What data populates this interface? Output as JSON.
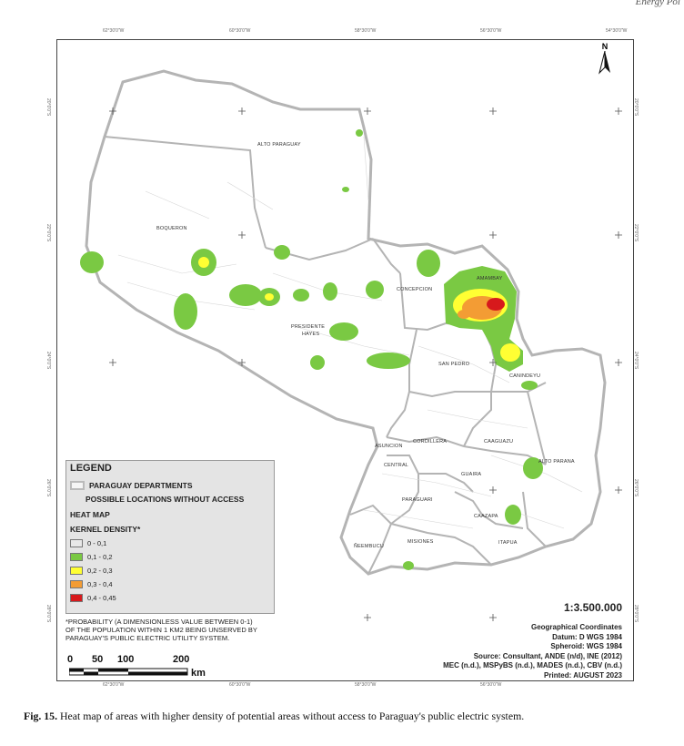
{
  "journal_header": "Energy Pol",
  "ticks": {
    "top": [
      "62°30'0\"W",
      "60°30'0\"W",
      "58°30'0\"W",
      "56°30'0\"W",
      "54°30'0\"W"
    ],
    "bottom": [
      "62°30'0\"W",
      "60°30'0\"W",
      "58°30'0\"W",
      "56°30'0\"W"
    ],
    "left": [
      "20°0'0\"S",
      "22°0'0\"S",
      "24°0'0\"S",
      "26°0'0\"S",
      "28°0'0\"S"
    ],
    "right": [
      "20°0'0\"S",
      "22°0'0\"S",
      "24°0'0\"S",
      "26°0'0\"S",
      "28°0'0\"S"
    ]
  },
  "north_label": "N",
  "departments": {
    "alto_paraguay": "ALTO PARAGUAY",
    "boqueron": "BOQUERON",
    "presidente_hayes_1": "PRESIDENTE",
    "presidente_hayes_2": "HAYES",
    "concepcion": "CONCEPCION",
    "amambay": "AMAMBAY",
    "san_pedro": "SAN PEDRO",
    "canindeyu": "CANINDEYU",
    "asuncion": "ASUNCION",
    "cordillera": "CORDILLERA",
    "caaguazu": "CAAGUAZU",
    "central": "CENTRAL",
    "alto_parana": "ALTO PARANA",
    "guaira": "GUAIRA",
    "paraguari": "PARAGUARI",
    "caazapa": "CAAZAPA",
    "neembucu": "ÑEEMBUCU",
    "misiones": "MISIONES",
    "itapua": "ITAPUA"
  },
  "legend": {
    "title": "LEGEND",
    "departments_label": "PARAGUAY DEPARTMENTS",
    "locations_label": "POSSIBLE LOCATIONS WITHOUT ACCESS",
    "heatmap_label": "HEAT MAP",
    "kernel_label": "KERNEL DENSITY*",
    "classes": [
      {
        "label": "0 - 0,1",
        "color": "#e8e8e8"
      },
      {
        "label": "0,1 - 0,2",
        "color": "#7ac943"
      },
      {
        "label": "0,2 - 0,3",
        "color": "#ffff33"
      },
      {
        "label": "0,3 - 0,4",
        "color": "#f39c34"
      },
      {
        "label": "0,4 - 0,45",
        "color": "#d7191c"
      }
    ]
  },
  "note": [
    "*PROBABILITY (A DIMENSIONLESS VALUE BETWEEN 0-1)",
    "OF THE POPULATION WITHIN 1 KM2 BEING UNSERVED BY",
    "PARAGUAY'S PUBLIC ELECTRIC UTILITY SYSTEM."
  ],
  "scalebar": {
    "labels": [
      "0",
      "50",
      "100",
      "200"
    ],
    "unit": "km"
  },
  "scale_info": {
    "scale": "1:3.500.000",
    "lines": [
      "Geographical Coordinates",
      "Datum: D WGS 1984",
      "Spheroid: WGS 1984",
      "Source: Consultant, ANDE (n/d), INE (2012)",
      "MEC (n.d.), MSPyBS (n.d.), MADES (n.d.), CBV (n.d.)",
      "Printed: AUGUST 2023"
    ]
  },
  "caption": {
    "label": "Fig. 15.",
    "text": "Heat map of areas with higher density of potential areas without access to Paraguay's public electric system."
  }
}
